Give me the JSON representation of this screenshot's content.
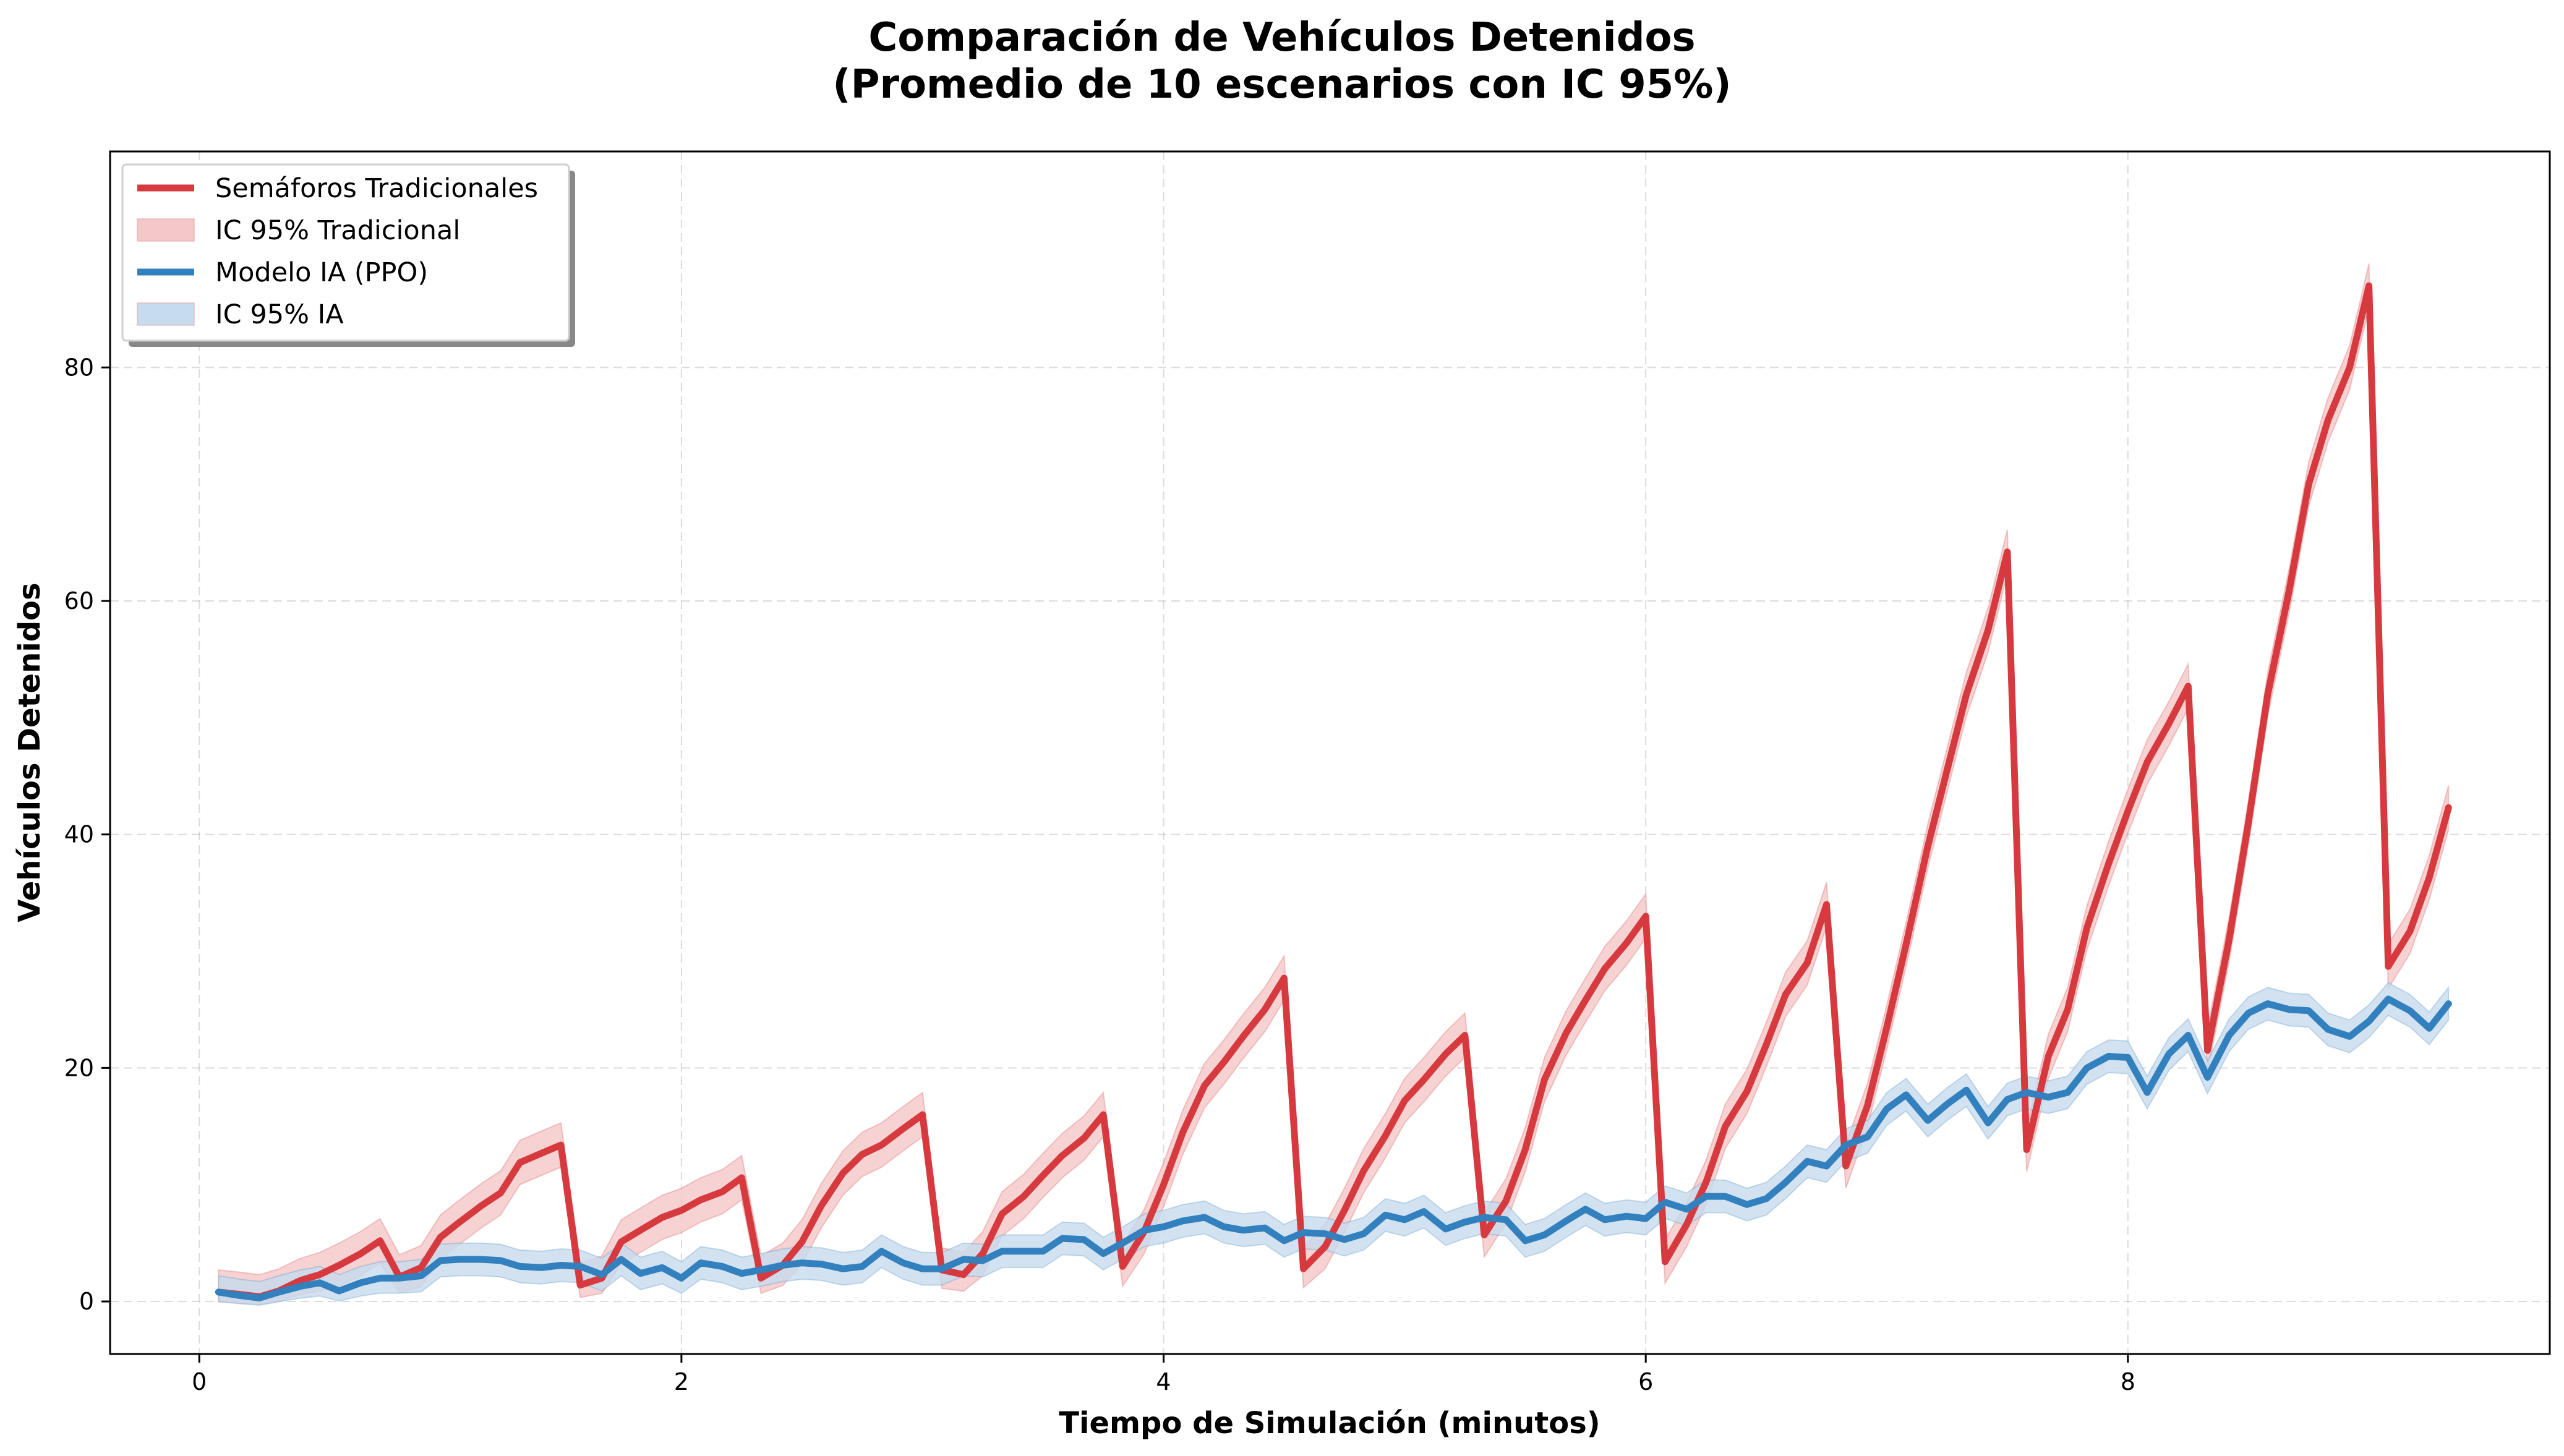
{
  "chart_data": {
    "type": "line",
    "title": "Comparación de Vehículos Detenidos",
    "subtitle": "(Promedio de 10 escenarios con IC 95%)",
    "xlabel": "Tiempo de Simulación (minutos)",
    "ylabel": "Vehículos Detenidos",
    "xlim": [
      -0.37,
      9.75
    ],
    "ylim": [
      -4.5,
      98.5
    ],
    "xticks": [
      0,
      2,
      4,
      6,
      8
    ],
    "yticks": [
      0,
      20,
      40,
      60,
      80
    ],
    "grid": true,
    "legend_position": "top-left",
    "legend": [
      {
        "label": "Semáforos Tradicionales",
        "kind": "line",
        "color": "#d63a3f"
      },
      {
        "label": "IC 95% Tradicional",
        "kind": "band",
        "color": "#f4c7c8"
      },
      {
        "label": "Modelo IA (PPO)",
        "kind": "line",
        "color": "#3280bd"
      },
      {
        "label": "IC 95% IA",
        "kind": "band",
        "color": "#c7dbee"
      }
    ],
    "series": [
      {
        "name": "Semáforos Tradicionales",
        "color": "#d63a3f",
        "band_color": "#f4c7c8",
        "ci": 1.9,
        "points": [
          [
            0.08,
            0.8
          ],
          [
            0.17,
            0.6
          ],
          [
            0.25,
            0.4
          ],
          [
            0.33,
            0.9
          ],
          [
            0.42,
            1.8
          ],
          [
            0.5,
            2.3
          ],
          [
            0.58,
            3.1
          ],
          [
            0.67,
            4.1
          ],
          [
            0.75,
            5.2
          ],
          [
            0.83,
            2.1
          ],
          [
            0.92,
            2.9
          ],
          [
            1.0,
            5.5
          ],
          [
            1.08,
            6.8
          ],
          [
            1.17,
            8.2
          ],
          [
            1.25,
            9.3
          ],
          [
            1.33,
            11.9
          ],
          [
            1.42,
            12.7
          ],
          [
            1.5,
            13.4
          ],
          [
            1.58,
            1.4
          ],
          [
            1.67,
            2.0
          ],
          [
            1.75,
            5.1
          ],
          [
            1.83,
            6.1
          ],
          [
            1.92,
            7.2
          ],
          [
            2.0,
            7.8
          ],
          [
            2.08,
            8.7
          ],
          [
            2.17,
            9.4
          ],
          [
            2.25,
            10.6
          ],
          [
            2.33,
            2.0
          ],
          [
            2.42,
            3.1
          ],
          [
            2.5,
            5.1
          ],
          [
            2.58,
            8.2
          ],
          [
            2.67,
            11.0
          ],
          [
            2.75,
            12.6
          ],
          [
            2.83,
            13.4
          ],
          [
            2.92,
            14.8
          ],
          [
            3.0,
            16.0
          ],
          [
            3.08,
            2.7
          ],
          [
            3.17,
            2.3
          ],
          [
            3.25,
            4.1
          ],
          [
            3.33,
            7.5
          ],
          [
            3.42,
            9.0
          ],
          [
            3.5,
            10.8
          ],
          [
            3.58,
            12.5
          ],
          [
            3.67,
            14.0
          ],
          [
            3.75,
            16.0
          ],
          [
            3.83,
            3.0
          ],
          [
            3.92,
            6.0
          ],
          [
            4.0,
            10.0
          ],
          [
            4.08,
            14.5
          ],
          [
            4.17,
            18.5
          ],
          [
            4.25,
            20.5
          ],
          [
            4.33,
            22.7
          ],
          [
            4.42,
            25.0
          ],
          [
            4.5,
            27.7
          ],
          [
            4.58,
            2.8
          ],
          [
            4.67,
            4.7
          ],
          [
            4.75,
            7.8
          ],
          [
            4.83,
            11.2
          ],
          [
            4.92,
            14.2
          ],
          [
            5.0,
            17.2
          ],
          [
            5.08,
            19.0
          ],
          [
            5.17,
            21.2
          ],
          [
            5.25,
            22.8
          ],
          [
            5.33,
            5.7
          ],
          [
            5.42,
            8.6
          ],
          [
            5.5,
            13.0
          ],
          [
            5.58,
            19.0
          ],
          [
            5.67,
            23.0
          ],
          [
            5.75,
            25.8
          ],
          [
            5.83,
            28.5
          ],
          [
            5.92,
            30.7
          ],
          [
            6.0,
            33.0
          ],
          [
            6.08,
            3.4
          ],
          [
            6.17,
            6.6
          ],
          [
            6.25,
            10.2
          ],
          [
            6.33,
            15.0
          ],
          [
            6.42,
            18.0
          ],
          [
            6.5,
            22.0
          ],
          [
            6.58,
            26.3
          ],
          [
            6.67,
            29.0
          ],
          [
            6.75,
            34.0
          ],
          [
            6.83,
            11.6
          ],
          [
            6.92,
            16.8
          ],
          [
            7.0,
            23.5
          ],
          [
            7.08,
            30.6
          ],
          [
            7.17,
            39.0
          ],
          [
            7.25,
            45.5
          ],
          [
            7.33,
            52.0
          ],
          [
            7.42,
            57.5
          ],
          [
            7.5,
            64.2
          ],
          [
            7.58,
            13.0
          ],
          [
            7.67,
            21.0
          ],
          [
            7.75,
            25.0
          ],
          [
            7.83,
            32.0
          ],
          [
            7.92,
            37.5
          ],
          [
            8.0,
            42.0
          ],
          [
            8.08,
            46.2
          ],
          [
            8.17,
            49.5
          ],
          [
            8.25,
            52.7
          ],
          [
            8.33,
            21.5
          ],
          [
            8.42,
            31.0
          ],
          [
            8.5,
            41.0
          ],
          [
            8.58,
            52.0
          ],
          [
            8.67,
            61.0
          ],
          [
            8.75,
            70.0
          ],
          [
            8.83,
            75.5
          ],
          [
            8.92,
            80.0
          ],
          [
            9.0,
            87.0
          ],
          [
            9.08,
            28.7
          ],
          [
            9.17,
            31.7
          ],
          [
            9.25,
            36.3
          ],
          [
            9.33,
            42.3
          ]
        ]
      },
      {
        "name": "Modelo IA (PPO)",
        "color": "#3280bd",
        "band_color": "#c7dbee",
        "ci": 1.4,
        "points": [
          [
            0.08,
            0.8
          ],
          [
            0.17,
            0.5
          ],
          [
            0.25,
            0.3
          ],
          [
            0.33,
            0.8
          ],
          [
            0.42,
            1.3
          ],
          [
            0.5,
            1.6
          ],
          [
            0.58,
            0.9
          ],
          [
            0.67,
            1.6
          ],
          [
            0.75,
            2.0
          ],
          [
            0.83,
            2.0
          ],
          [
            0.92,
            2.2
          ],
          [
            1.0,
            3.5
          ],
          [
            1.08,
            3.6
          ],
          [
            1.17,
            3.6
          ],
          [
            1.25,
            3.5
          ],
          [
            1.33,
            3.0
          ],
          [
            1.42,
            2.9
          ],
          [
            1.5,
            3.1
          ],
          [
            1.58,
            3.0
          ],
          [
            1.67,
            2.3
          ],
          [
            1.75,
            3.6
          ],
          [
            1.83,
            2.4
          ],
          [
            1.92,
            2.9
          ],
          [
            2.0,
            2.0
          ],
          [
            2.08,
            3.3
          ],
          [
            2.17,
            3.0
          ],
          [
            2.25,
            2.4
          ],
          [
            2.33,
            2.7
          ],
          [
            2.42,
            3.1
          ],
          [
            2.5,
            3.3
          ],
          [
            2.58,
            3.2
          ],
          [
            2.67,
            2.8
          ],
          [
            2.75,
            3.0
          ],
          [
            2.83,
            4.3
          ],
          [
            2.92,
            3.3
          ],
          [
            3.0,
            2.8
          ],
          [
            3.08,
            2.8
          ],
          [
            3.17,
            3.6
          ],
          [
            3.25,
            3.5
          ],
          [
            3.33,
            4.3
          ],
          [
            3.42,
            4.3
          ],
          [
            3.5,
            4.3
          ],
          [
            3.58,
            5.4
          ],
          [
            3.67,
            5.3
          ],
          [
            3.75,
            4.1
          ],
          [
            3.83,
            5.0
          ],
          [
            3.92,
            6.1
          ],
          [
            4.0,
            6.4
          ],
          [
            4.08,
            6.9
          ],
          [
            4.17,
            7.2
          ],
          [
            4.25,
            6.4
          ],
          [
            4.33,
            6.1
          ],
          [
            4.42,
            6.3
          ],
          [
            4.5,
            5.2
          ],
          [
            4.58,
            5.9
          ],
          [
            4.67,
            5.8
          ],
          [
            4.75,
            5.3
          ],
          [
            4.83,
            5.8
          ],
          [
            4.92,
            7.4
          ],
          [
            5.0,
            7.0
          ],
          [
            5.08,
            7.7
          ],
          [
            5.17,
            6.2
          ],
          [
            5.25,
            6.8
          ],
          [
            5.33,
            7.2
          ],
          [
            5.42,
            7.0
          ],
          [
            5.5,
            5.2
          ],
          [
            5.58,
            5.7
          ],
          [
            5.67,
            6.9
          ],
          [
            5.75,
            7.9
          ],
          [
            5.83,
            7.0
          ],
          [
            5.92,
            7.3
          ],
          [
            6.0,
            7.1
          ],
          [
            6.08,
            8.5
          ],
          [
            6.17,
            7.9
          ],
          [
            6.25,
            9.0
          ],
          [
            6.33,
            9.0
          ],
          [
            6.42,
            8.3
          ],
          [
            6.5,
            8.8
          ],
          [
            6.58,
            10.2
          ],
          [
            6.67,
            12.0
          ],
          [
            6.75,
            11.6
          ],
          [
            6.83,
            13.4
          ],
          [
            6.92,
            14.1
          ],
          [
            7.0,
            16.5
          ],
          [
            7.08,
            17.7
          ],
          [
            7.17,
            15.5
          ],
          [
            7.25,
            16.9
          ],
          [
            7.33,
            18.1
          ],
          [
            7.42,
            15.3
          ],
          [
            7.5,
            17.3
          ],
          [
            7.58,
            17.9
          ],
          [
            7.67,
            17.5
          ],
          [
            7.75,
            17.9
          ],
          [
            7.83,
            20.0
          ],
          [
            7.92,
            21.0
          ],
          [
            8.0,
            20.9
          ],
          [
            8.08,
            17.9
          ],
          [
            8.17,
            21.2
          ],
          [
            8.25,
            22.8
          ],
          [
            8.33,
            19.2
          ],
          [
            8.42,
            22.8
          ],
          [
            8.5,
            24.7
          ],
          [
            8.58,
            25.5
          ],
          [
            8.67,
            25.0
          ],
          [
            8.75,
            24.9
          ],
          [
            8.83,
            23.3
          ],
          [
            8.92,
            22.7
          ],
          [
            9.0,
            24.0
          ],
          [
            9.08,
            25.9
          ],
          [
            9.17,
            24.9
          ],
          [
            9.25,
            23.4
          ],
          [
            9.33,
            25.5
          ]
        ]
      }
    ]
  }
}
